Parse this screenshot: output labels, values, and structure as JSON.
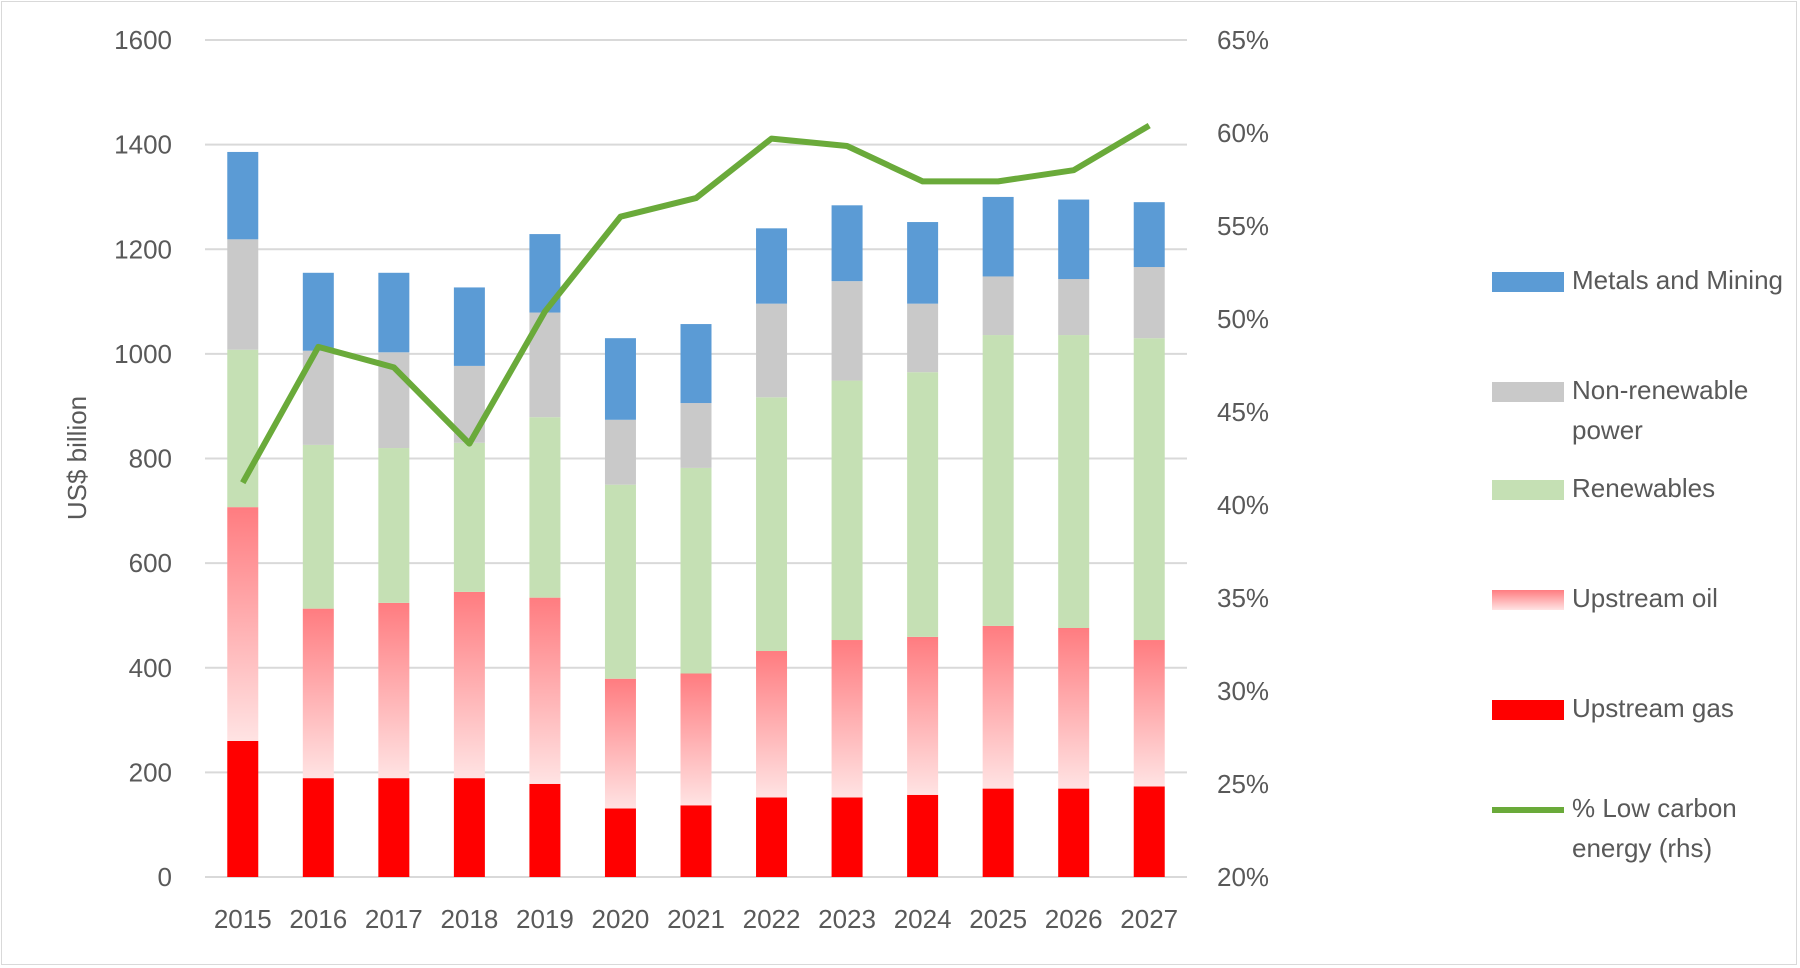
{
  "chart_data": {
    "type": "bar",
    "stacked": true,
    "title": "",
    "xlabel": "",
    "ylabel": "US$ billion",
    "ylim": [
      0,
      1600
    ],
    "yticks": [
      "0",
      "200",
      "400",
      "600",
      "800",
      "1000",
      "1200",
      "1400",
      "1600"
    ],
    "y2lim": [
      20,
      65
    ],
    "y2ticks": [
      "20%",
      "25%",
      "30%",
      "35%",
      "40%",
      "45%",
      "50%",
      "55%",
      "60%",
      "65%"
    ],
    "grid": true,
    "legend_position": "right",
    "categories": [
      "2015",
      "2016",
      "2017",
      "2018",
      "2019",
      "2020",
      "2021",
      "2022",
      "2023",
      "2024",
      "2025",
      "2026",
      "2027"
    ],
    "series": [
      {
        "name": "Upstream gas",
        "color": "#ff0000",
        "values": [
          260,
          189,
          189,
          189,
          178,
          131,
          137,
          152,
          152,
          157,
          169,
          169,
          173
        ]
      },
      {
        "name": "Upstream oil",
        "color": "#ff7c80",
        "color_light": "#ffe3e3",
        "values": [
          447,
          324,
          335,
          356,
          356,
          248,
          252,
          280,
          301,
          302,
          311,
          307,
          280
        ]
      },
      {
        "name": "Renewables",
        "color": "#c5e0b4",
        "values": [
          301,
          313,
          296,
          285,
          345,
          371,
          393,
          485,
          496,
          506,
          556,
          560,
          577
        ]
      },
      {
        "name": "Non-renewable power",
        "color": "#c9c9c9",
        "values": [
          211,
          180,
          183,
          147,
          200,
          124,
          124,
          179,
          190,
          131,
          112,
          107,
          136
        ]
      },
      {
        "name": "Metals and Mining",
        "color": "#5b9bd5",
        "values": [
          167,
          149,
          152,
          150,
          150,
          156,
          151,
          144,
          145,
          156,
          152,
          152,
          124
        ]
      }
    ],
    "line_series": {
      "name": "% Low carbon energy (rhs)",
      "color": "#6aaa3a",
      "axis": "right",
      "values": [
        41.2,
        48.5,
        47.4,
        43.3,
        50.4,
        55.5,
        56.5,
        59.7,
        59.3,
        57.4,
        57.4,
        58.0,
        60.4
      ]
    },
    "legend_order": [
      "Metals and Mining",
      "Non-renewable power",
      "Renewables",
      "Upstream oil",
      "Upstream gas",
      "% Low carbon energy (rhs)"
    ]
  }
}
